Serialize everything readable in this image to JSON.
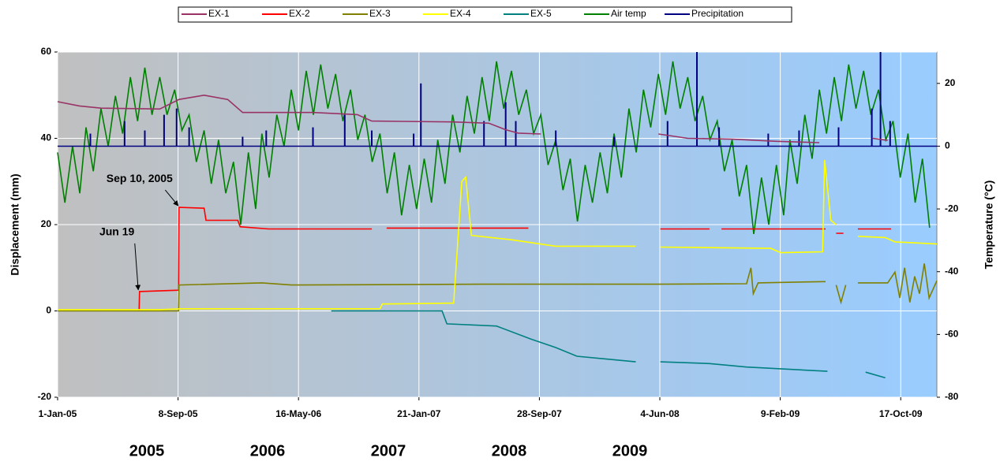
{
  "chart_data": {
    "type": "line",
    "y_label": "Displacement (mm)",
    "y2_label": "Temperature (°C)",
    "xlim": [
      "2005-01-01",
      "2009-12-31"
    ],
    "xticks": [
      {
        "value": "2005-01-01",
        "label": "1-Jan-05"
      },
      {
        "value": "2005-09-08",
        "label": "8-Sep-05"
      },
      {
        "value": "2006-05-16",
        "label": "16-May-06"
      },
      {
        "value": "2007-01-21",
        "label": "21-Jan-07"
      },
      {
        "value": "2007-09-28",
        "label": "28-Sep-07"
      },
      {
        "value": "2008-06-04",
        "label": "4-Jun-08"
      },
      {
        "value": "2009-02-09",
        "label": "9-Feb-09"
      },
      {
        "value": "2009-10-17",
        "label": "17-Oct-09"
      }
    ],
    "ylim": [
      -20,
      60
    ],
    "yticks": [
      -20,
      0,
      20,
      40,
      60
    ],
    "y2lim": [
      -80,
      30
    ],
    "y2ticks": [
      -80,
      -60,
      -40,
      -20,
      0,
      20
    ],
    "grid": true,
    "legend": "top",
    "year_labels": [
      "2005",
      "2006",
      "2007",
      "2008",
      "2009"
    ],
    "annotations": [
      {
        "text": "Sep 10, 2005",
        "x": "2005-09-10",
        "y": 24
      },
      {
        "text": "Jun 19",
        "x": "2005-06-19",
        "y": 4.5
      }
    ],
    "series": [
      {
        "name": "EX-1",
        "color": "#993366",
        "axis": "y",
        "x": [
          "2005-01-01",
          "2005-02-15",
          "2005-04-01",
          "2005-08-01",
          "2005-09-10",
          "2005-11-01",
          "2005-12-20",
          "2006-01-20",
          "2006-04-01",
          "2006-06-15",
          "2006-09-15",
          "2006-10-15",
          "2007-04-01",
          "2007-06-15",
          "2007-07-20",
          "2007-08-15",
          "2007-10-01",
          "2008-01-01",
          "2008-06-01",
          "2008-08-01",
          "2008-11-01",
          "2009-02-01",
          "2009-05-01",
          "2009-07-01",
          "2009-08-20",
          "2009-09-20"
        ],
        "values": [
          48.5,
          47.5,
          47,
          46.8,
          49,
          50,
          49,
          46,
          46,
          46,
          45.5,
          44,
          43.8,
          43.5,
          42,
          41.2,
          41,
          null,
          41,
          40,
          39.8,
          39.3,
          39,
          null,
          40,
          39.5
        ]
      },
      {
        "name": "EX-2",
        "color": "#ff0000",
        "axis": "y",
        "x": [
          "2005-06-19",
          "2005-06-20",
          "2005-09-09",
          "2005-09-10",
          "2005-11-01",
          "2005-11-05",
          "2006-01-10",
          "2006-01-15",
          "2006-03-15",
          "2006-10-15",
          "2006-11-01",
          "2006-11-15",
          "2007-09-05",
          "2008-01-01",
          "2008-06-05",
          "2008-09-15",
          "2008-10-01",
          "2008-10-10",
          "2009-05-14",
          "2009-05-25",
          "2009-06-05",
          "2009-06-20",
          "2009-07-10",
          "2009-07-20",
          "2009-09-27"
        ],
        "values": [
          0,
          4.5,
          4.8,
          24,
          23.8,
          21,
          21,
          19.5,
          19,
          19,
          null,
          19.2,
          19.2,
          null,
          19,
          19,
          null,
          19,
          19,
          null,
          18,
          18,
          null,
          19,
          19
        ]
      },
      {
        "name": "EX-3",
        "color": "#808000",
        "axis": "y",
        "x": [
          "2005-01-01",
          "2005-09-09",
          "2005-09-10",
          "2006-03-01",
          "2006-05-01",
          "2007-06-01",
          "2008-06-01",
          "2008-12-01",
          "2008-12-10",
          "2008-12-15",
          "2008-12-25",
          "2009-05-14",
          "2009-05-25",
          "2009-06-05",
          "2009-06-15",
          "2009-06-25",
          "2009-07-10",
          "2009-07-20",
          "2009-09-20",
          "2009-10-05",
          "2009-10-15",
          "2009-10-25",
          "2009-11-05",
          "2009-11-15",
          "2009-11-25",
          "2009-12-05",
          "2009-12-15",
          "2009-12-31"
        ],
        "values": [
          0,
          0,
          6,
          6.5,
          6,
          6.2,
          6.2,
          6.3,
          10,
          4,
          6.5,
          6.8,
          null,
          6,
          2,
          6,
          null,
          6.5,
          6.5,
          9,
          3,
          10,
          2,
          8,
          4,
          11,
          3,
          7
        ]
      },
      {
        "name": "EX-4",
        "color": "#ffff00",
        "axis": "y",
        "x": [
          "2005-01-01",
          "2005-08-01",
          "2005-09-15",
          "2006-11-01",
          "2006-11-06",
          "2007-04-03",
          "2007-04-20",
          "2007-04-28",
          "2007-05-10",
          "2007-08-01",
          "2007-11-01",
          "2008-04-15",
          "2008-05-10",
          "2008-06-05",
          "2009-01-20",
          "2009-02-10",
          "2009-05-08",
          "2009-05-12",
          "2009-05-25",
          "2009-06-05",
          "2009-07-01",
          "2009-07-20",
          "2009-09-15",
          "2009-10-05",
          "2009-12-31"
        ],
        "values": [
          0.3,
          0.3,
          0.5,
          0.5,
          1.6,
          1.8,
          30,
          31,
          17.5,
          16.5,
          15,
          15,
          null,
          14.8,
          14.5,
          13.5,
          13.7,
          35,
          21,
          20,
          null,
          17.3,
          17,
          16,
          15.5
        ]
      },
      {
        "name": "EX-5",
        "color": "#008080",
        "axis": "y",
        "x": [
          "2006-07-23",
          "2007-03-10",
          "2007-03-20",
          "2007-07-01",
          "2007-09-10",
          "2007-11-01",
          "2007-12-15",
          "2008-04-15",
          "2008-05-10",
          "2008-06-05",
          "2008-09-15",
          "2008-12-01",
          "2009-05-18",
          "2009-07-01",
          "2009-08-05",
          "2009-09-15"
        ],
        "values": [
          0,
          0,
          -3,
          -3.5,
          -6.5,
          -8.5,
          -10.5,
          -11.8,
          null,
          -11.8,
          -12.2,
          -13,
          -14,
          null,
          -14.2,
          -15.5
        ]
      },
      {
        "name": "Air temp",
        "color": "#008000",
        "axis": "y2",
        "x": [
          "2005-01-01",
          "2005-01-16",
          "2005-02-01",
          "2005-02-16",
          "2005-03-01",
          "2005-03-16",
          "2005-04-01",
          "2005-04-16",
          "2005-05-01",
          "2005-05-16",
          "2005-06-01",
          "2005-06-16",
          "2005-07-01",
          "2005-07-16",
          "2005-08-01",
          "2005-08-16",
          "2005-09-01",
          "2005-09-16",
          "2005-10-01",
          "2005-10-16",
          "2005-11-01",
          "2005-11-16",
          "2005-12-01",
          "2005-12-16",
          "2006-01-01",
          "2006-01-16",
          "2006-02-01",
          "2006-02-16",
          "2006-03-01",
          "2006-03-16",
          "2006-04-01",
          "2006-04-16",
          "2006-05-01",
          "2006-05-16",
          "2006-06-01",
          "2006-06-16",
          "2006-07-01",
          "2006-07-16",
          "2006-08-01",
          "2006-08-16",
          "2006-09-01",
          "2006-09-16",
          "2006-10-01",
          "2006-10-16",
          "2006-11-01",
          "2006-11-16",
          "2006-12-01",
          "2006-12-16",
          "2007-01-01",
          "2007-01-16",
          "2007-02-01",
          "2007-02-16",
          "2007-03-01",
          "2007-03-16",
          "2007-04-01",
          "2007-04-16",
          "2007-05-01",
          "2007-05-16",
          "2007-06-01",
          "2007-06-16",
          "2007-07-01",
          "2007-07-16",
          "2007-08-01",
          "2007-08-16",
          "2007-09-01",
          "2007-09-16",
          "2007-10-01",
          "2007-10-16",
          "2007-11-01",
          "2007-11-16",
          "2007-12-01",
          "2007-12-16",
          "2008-01-01",
          "2008-01-16",
          "2008-02-01",
          "2008-02-16",
          "2008-03-01",
          "2008-03-16",
          "2008-04-01",
          "2008-04-16",
          "2008-05-01",
          "2008-05-16",
          "2008-06-01",
          "2008-06-16",
          "2008-07-01",
          "2008-07-16",
          "2008-08-01",
          "2008-08-16",
          "2008-09-01",
          "2008-09-16",
          "2008-10-01",
          "2008-10-16",
          "2008-11-01",
          "2008-11-16",
          "2008-12-01",
          "2008-12-16",
          "2009-01-01",
          "2009-01-16",
          "2009-02-01",
          "2009-02-16",
          "2009-03-01",
          "2009-03-16",
          "2009-04-01",
          "2009-04-16",
          "2009-05-01",
          "2009-05-16",
          "2009-06-01",
          "2009-06-16",
          "2009-07-01",
          "2009-07-16",
          "2009-08-01",
          "2009-08-16",
          "2009-09-01",
          "2009-09-16",
          "2009-10-01",
          "2009-10-16",
          "2009-11-01",
          "2009-11-16",
          "2009-12-01",
          "2009-12-16"
        ],
        "values": [
          -2,
          -18,
          0,
          -15,
          6,
          -8,
          12,
          0,
          16,
          4,
          22,
          8,
          25,
          10,
          22,
          10,
          18,
          5,
          10,
          -5,
          5,
          -12,
          2,
          -15,
          -5,
          -25,
          -2,
          -20,
          4,
          -10,
          10,
          0,
          18,
          5,
          24,
          10,
          26,
          12,
          23,
          8,
          18,
          2,
          10,
          -5,
          4,
          -15,
          -2,
          -22,
          -6,
          -20,
          -4,
          -18,
          2,
          -12,
          10,
          -2,
          16,
          4,
          22,
          8,
          27,
          12,
          24,
          10,
          18,
          4,
          10,
          -6,
          2,
          -14,
          -4,
          -24,
          -6,
          -18,
          -2,
          -15,
          4,
          -10,
          12,
          -2,
          18,
          6,
          23,
          10,
          27,
          12,
          22,
          8,
          16,
          2,
          8,
          -8,
          2,
          -16,
          -6,
          -28,
          -10,
          -25,
          -6,
          -22,
          2,
          -12,
          10,
          -4,
          18,
          4,
          22,
          8,
          26,
          12,
          24,
          10,
          18,
          2,
          8,
          -10,
          4,
          -18,
          -4,
          -26
        ]
      },
      {
        "name": "Precipitation",
        "color": "#000080",
        "axis": "y2",
        "draw": "spikes",
        "x": [
          "2005-03-10",
          "2005-05-20",
          "2005-07-01",
          "2005-08-10",
          "2005-09-05",
          "2005-10-01",
          "2006-01-20",
          "2006-03-10",
          "2006-06-15",
          "2006-08-20",
          "2006-10-15",
          "2007-01-10",
          "2007-01-25",
          "2007-06-05",
          "2007-07-20",
          "2007-08-10",
          "2007-11-01",
          "2008-03-01",
          "2008-06-20",
          "2008-08-20",
          "2008-10-05",
          "2009-01-15",
          "2009-03-20",
          "2009-06-10",
          "2009-08-18",
          "2009-09-05",
          "2009-09-25"
        ],
        "values": [
          4,
          8,
          5,
          10,
          12,
          6,
          3,
          5,
          6,
          10,
          5,
          4,
          20,
          8,
          14,
          8,
          5,
          3,
          8,
          30,
          6,
          4,
          5,
          6,
          12,
          30,
          8
        ]
      }
    ]
  }
}
